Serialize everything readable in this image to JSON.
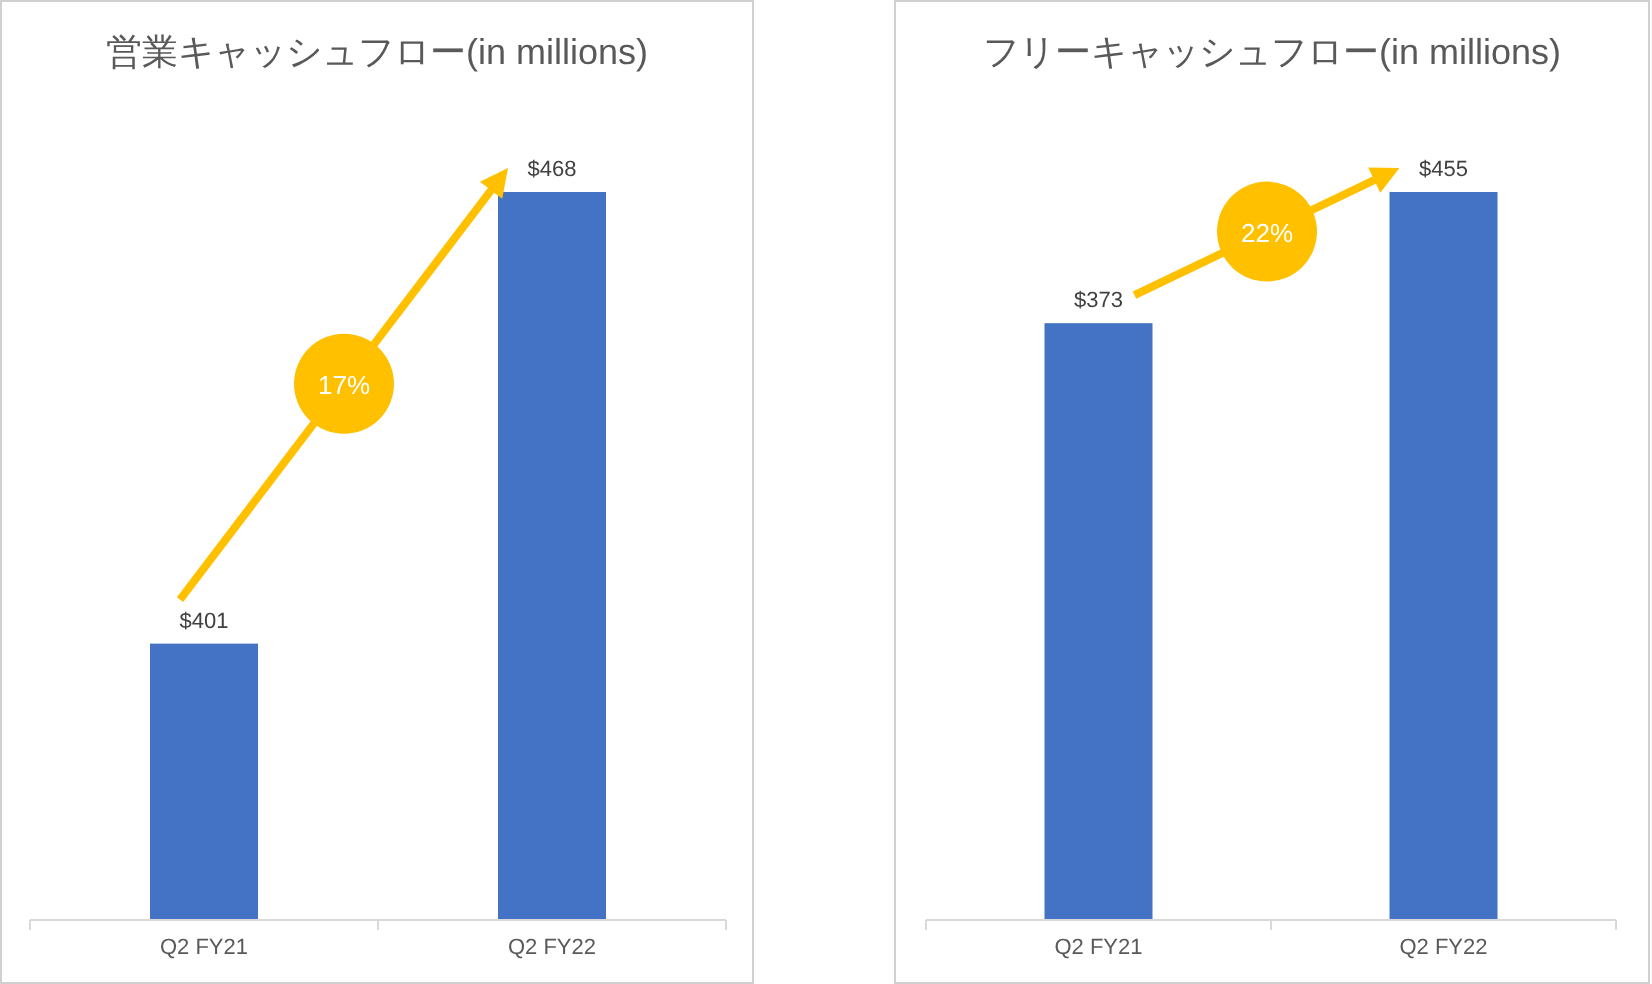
{
  "chart_data": [
    {
      "type": "bar",
      "title": "営業キャッシュフロー(in millions)",
      "categories": [
        "Q2  FY21",
        "Q2 FY22"
      ],
      "values": [
        401,
        468
      ],
      "value_labels": [
        "$401",
        "$468"
      ],
      "color": "#4472c4",
      "ylim": [
        360,
        468
      ],
      "annotations": [
        "17%"
      ]
    },
    {
      "type": "bar",
      "title": "フリーキャッシュフロー(in millions)",
      "categories": [
        "Q2  FY21",
        "Q2 FY22"
      ],
      "values": [
        373,
        455
      ],
      "value_labels": [
        "$373",
        "$455"
      ],
      "color": "#4472c4",
      "ylim": [
        0,
        455
      ],
      "annotations": [
        "22%"
      ]
    }
  ]
}
